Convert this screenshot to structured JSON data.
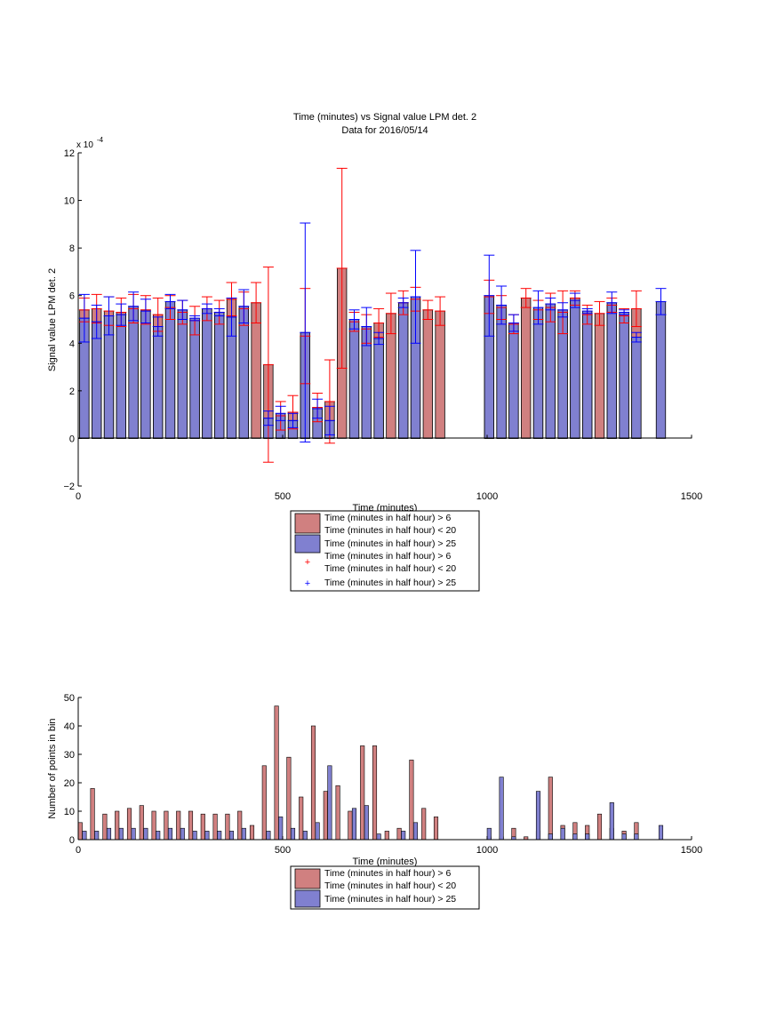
{
  "colors": {
    "red_fill": "#d08080",
    "blue_fill": "#8080d0",
    "red_err": "#ff0000",
    "blue_err": "#0000ff",
    "axis": "#000000"
  },
  "chart_data": [
    {
      "type": "bar",
      "title": "Time (minutes) vs Signal value LPM det. 2",
      "subtitle": "Data for 2016/05/14",
      "xlabel": "Time (minutes)",
      "ylabel": "Signal value LPM det. 2",
      "exponent_label": "x 10",
      "exponent_power": "-4",
      "xlim": [
        0,
        1500
      ],
      "ylim": [
        -2,
        12
      ],
      "xticks": [
        "0",
        "500",
        "1000",
        "1500"
      ],
      "yticks": [
        "−2",
        "0",
        "2",
        "4",
        "6",
        "8",
        "10",
        "12"
      ],
      "legend": [
        "Time (minutes in half hour) > 6",
        "Time (minutes in half hour) < 20",
        "Time (minutes in half hour) > 25",
        "Time (minutes in half hour) > 6",
        "Time (minutes in half hour) < 20",
        "Time (minutes in half hour) > 25"
      ],
      "series": [
        {
          "name": "Time (minutes in half hour) > 6 Time (minutes in half hour) < 20",
          "color": "#d08080",
          "x": [
            15,
            45,
            75,
            105,
            135,
            165,
            195,
            225,
            255,
            285,
            315,
            345,
            375,
            405,
            435,
            465,
            495,
            525,
            555,
            585,
            615,
            645,
            675,
            705,
            735,
            765,
            795,
            825,
            855,
            885,
            1005,
            1035,
            1065,
            1095,
            1125,
            1155,
            1185,
            1215,
            1245,
            1275,
            1305,
            1335,
            1365
          ],
          "values": [
            5.4,
            5.45,
            5.35,
            5.3,
            5.45,
            5.4,
            5.2,
            5.5,
            5.3,
            4.95,
            5.45,
            5.3,
            5.85,
            5.45,
            5.7,
            3.1,
            0.95,
            1.1,
            4.3,
            1.3,
            1.55,
            7.15,
            4.9,
            4.6,
            4.85,
            5.25,
            5.7,
            5.85,
            5.4,
            5.35,
            5.95,
            5.5,
            4.8,
            5.9,
            5.4,
            5.5,
            5.3,
            5.9,
            5.2,
            5.25,
            5.6,
            5.15,
            5.45
          ],
          "err": [
            0.5,
            0.6,
            0.6,
            0.6,
            0.6,
            0.6,
            0.7,
            0.5,
            0.5,
            0.6,
            0.5,
            0.5,
            0.7,
            0.7,
            0.85,
            4.1,
            0.6,
            0.7,
            2.0,
            0.6,
            1.75,
            4.2,
            0.4,
            0.6,
            0.6,
            0.85,
            0.5,
            0.5,
            0.4,
            0.6,
            0.7,
            0.5,
            0.4,
            0.4,
            0.4,
            0.6,
            0.9,
            0.3,
            0.4,
            0.5,
            0.3,
            0.3,
            0.75
          ]
        },
        {
          "name": "Time (minutes in half hour) > 25",
          "color": "#8080d0",
          "x": [
            15,
            45,
            75,
            105,
            135,
            165,
            195,
            225,
            255,
            285,
            315,
            345,
            375,
            405,
            465,
            495,
            525,
            555,
            585,
            615,
            675,
            705,
            735,
            795,
            825,
            1005,
            1035,
            1065,
            1125,
            1155,
            1185,
            1215,
            1245,
            1305,
            1335,
            1365,
            1425
          ],
          "values": [
            5.05,
            4.9,
            5.15,
            5.2,
            5.55,
            5.35,
            4.7,
            5.75,
            5.4,
            5.05,
            5.45,
            5.3,
            5.1,
            5.55,
            0.85,
            1.05,
            0.75,
            4.45,
            1.25,
            0.75,
            5.0,
            4.7,
            4.2,
            5.7,
            5.95,
            6.0,
            5.6,
            4.85,
            5.5,
            5.65,
            5.4,
            5.8,
            5.35,
            5.7,
            5.3,
            4.25,
            5.75
          ],
          "err": [
            1.0,
            0.7,
            0.8,
            0.45,
            0.6,
            0.5,
            0.4,
            0.3,
            0.4,
            0.1,
            0.2,
            0.15,
            0.8,
            0.7,
            0.3,
            0.3,
            0.3,
            4.6,
            0.4,
            0.6,
            0.4,
            0.8,
            0.25,
            0.2,
            1.95,
            1.7,
            0.8,
            0.35,
            0.7,
            0.25,
            0.3,
            0.3,
            0.1,
            0.45,
            0.1,
            0.2,
            0.55
          ]
        }
      ]
    },
    {
      "type": "bar",
      "title": "",
      "xlabel": "Time (minutes)",
      "ylabel": "Number of points in bin",
      "xlim": [
        0,
        1500
      ],
      "ylim": [
        0,
        50
      ],
      "xticks": [
        "0",
        "500",
        "1000",
        "1500"
      ],
      "yticks": [
        "0",
        "10",
        "20",
        "30",
        "40",
        "50"
      ],
      "legend": [
        "Time (minutes in half hour) > 6",
        "Time (minutes in half hour) < 20",
        "Time (minutes in half hour) > 25"
      ],
      "series": [
        {
          "name": "Time (minutes in half hour) > 6 Time (minutes in half hour) < 20",
          "color": "#d08080",
          "x": [
            5,
            35,
            65,
            95,
            125,
            155,
            185,
            215,
            245,
            275,
            305,
            335,
            365,
            395,
            425,
            455,
            485,
            515,
            545,
            575,
            605,
            635,
            665,
            695,
            725,
            755,
            785,
            815,
            845,
            875,
            1005,
            1035,
            1065,
            1095,
            1125,
            1155,
            1185,
            1215,
            1245,
            1275,
            1305,
            1335,
            1365
          ],
          "values": [
            6,
            18,
            9,
            10,
            11,
            12,
            10,
            10,
            10,
            10,
            9,
            9,
            9,
            10,
            5,
            26,
            47,
            29,
            15,
            40,
            17,
            19,
            10,
            33,
            33,
            3,
            4,
            28,
            11,
            8,
            1,
            1,
            4,
            1,
            3,
            22,
            5,
            6,
            5,
            9,
            4,
            3,
            6
          ]
        },
        {
          "name": "Time (minutes in half hour) > 25",
          "color": "#8080d0",
          "x": [
            15,
            45,
            75,
            105,
            135,
            165,
            195,
            225,
            255,
            285,
            315,
            345,
            375,
            405,
            465,
            495,
            525,
            555,
            585,
            615,
            675,
            705,
            735,
            795,
            825,
            1005,
            1035,
            1065,
            1125,
            1155,
            1185,
            1215,
            1245,
            1305,
            1335,
            1365,
            1425
          ],
          "values": [
            3,
            3,
            4,
            4,
            4,
            4,
            3,
            4,
            4,
            3,
            3,
            3,
            3,
            4,
            3,
            8,
            4,
            3,
            6,
            26,
            11,
            12,
            2,
            3,
            6,
            4,
            22,
            1,
            17,
            2,
            4,
            2,
            2,
            13,
            2,
            2,
            5
          ]
        }
      ]
    }
  ]
}
